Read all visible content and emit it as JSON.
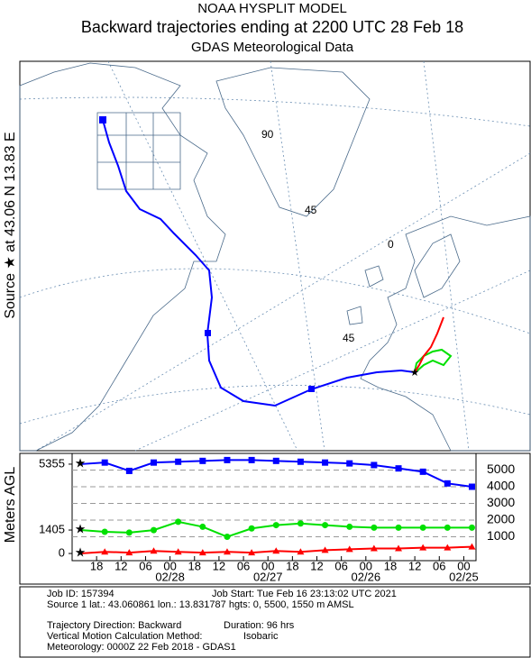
{
  "header": {
    "title": "NOAA HYSPLIT MODEL",
    "subtitle": "Backward trajectories ending at 2200 UTC 28 Feb 18",
    "source": "GDAS Meteorological Data"
  },
  "map": {
    "source_label": "Source ★ at 43.06 N   13.83 E",
    "grid_labels": [
      "90",
      "45",
      "0",
      "45"
    ]
  },
  "chart_data": {
    "type": "line",
    "ylabel": "Meters AGL",
    "x": [
      0,
      6,
      12,
      18,
      24,
      30,
      36,
      42,
      48,
      54,
      60,
      66,
      72,
      78,
      84,
      90,
      96
    ],
    "series": [
      {
        "color": "#0000ff",
        "values": [
          5355,
          5450,
          4950,
          5450,
          5500,
          5550,
          5600,
          5600,
          5550,
          5500,
          5450,
          5400,
          5300,
          5100,
          4900,
          4200,
          4000
        ]
      },
      {
        "color": "#00e000",
        "values": [
          1405,
          1300,
          1250,
          1400,
          1900,
          1600,
          1000,
          1500,
          1700,
          1800,
          1700,
          1600,
          1550,
          1550,
          1550,
          1550,
          1550
        ]
      },
      {
        "color": "#ff0000",
        "values": [
          0,
          100,
          50,
          150,
          100,
          50,
          100,
          50,
          150,
          100,
          200,
          250,
          300,
          300,
          350,
          350,
          400
        ]
      }
    ],
    "xlim": [
      -2,
      97
    ],
    "xticks": [
      {
        "value": 4,
        "label": "18"
      },
      {
        "value": 10,
        "label": "12"
      },
      {
        "value": 16,
        "label": "06"
      },
      {
        "value": 22,
        "label": "00"
      },
      {
        "value": 28,
        "label": "18"
      },
      {
        "value": 34,
        "label": "12"
      },
      {
        "value": 40,
        "label": "06"
      },
      {
        "value": 46,
        "label": "00"
      },
      {
        "value": 52,
        "label": "18"
      },
      {
        "value": 58,
        "label": "12"
      },
      {
        "value": 64,
        "label": "06"
      },
      {
        "value": 70,
        "label": "00"
      },
      {
        "value": 76,
        "label": "18"
      },
      {
        "value": 82,
        "label": "12"
      },
      {
        "value": 88,
        "label": "06"
      },
      {
        "value": 94,
        "label": "00"
      }
    ],
    "xdates": [
      {
        "value": 22,
        "label": "02/28"
      },
      {
        "value": 46,
        "label": "02/27"
      },
      {
        "value": 70,
        "label": "02/26"
      },
      {
        "value": 94,
        "label": "02/25"
      }
    ],
    "ylim": [
      -430,
      6000
    ],
    "yticks": [
      0,
      1405,
      5355
    ],
    "y2ticks": [
      1000,
      2000,
      3000,
      4000,
      5000
    ]
  },
  "footer": {
    "job_id": "Job ID: 157394",
    "job_start": "Job Start: Tue Feb 16 23:13:02 UTC 2021",
    "source_line": "Source 1 lat.: 43.060861   lon.: 13.831787   hgts: 0, 5500, 1550 m AMSL",
    "direction": "Trajectory Direction: Backward",
    "duration": "Duration: 96 hrs",
    "vertical": "Vertical Motion Calculation Method:",
    "method": "Isobaric",
    "meteorology": "Meteorology: 0000Z 22 Feb 2018 - GDAS1"
  }
}
